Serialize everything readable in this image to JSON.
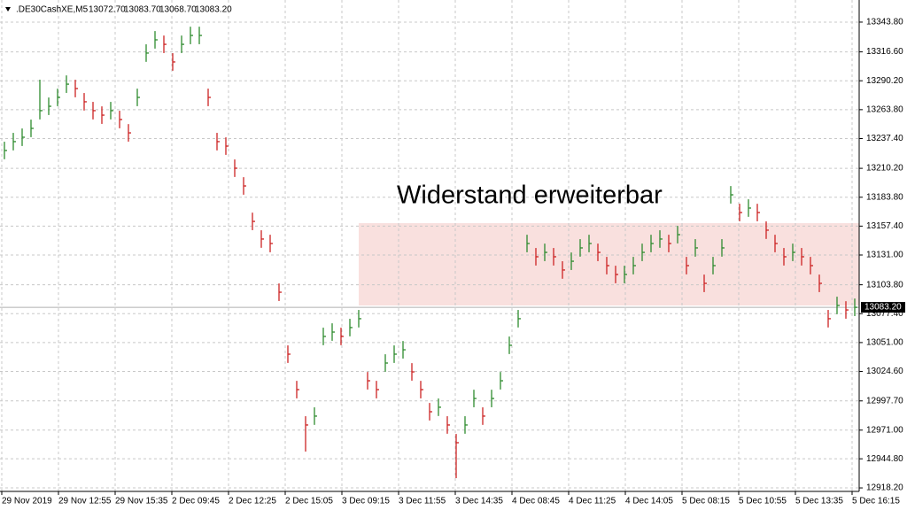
{
  "chart_data": {
    "type": "ohlc",
    "title": ".DE30CashXE,M5",
    "ohlc_header": [
      {
        "value": 13072.7,
        "label": "13072.70"
      },
      {
        "value": 13083.7,
        "label": "13083.70"
      },
      {
        "value": 13068.7,
        "label": "13068.70"
      },
      {
        "value": 13083.2,
        "label": "13083.20"
      }
    ],
    "annotation": "Widerstand erweiterbar",
    "up_color": "#2e8b2e",
    "down_color": "#cc2222",
    "zone_color": "#f9e0de",
    "annotation_color": "#4a90e2",
    "grid": true,
    "xlim": [
      -0.5,
      96.5
    ],
    "ylim": [
      12915.0,
      13364.0
    ],
    "yticks": [
      {
        "value": 12918.2,
        "label": "12918.20"
      },
      {
        "value": 12944.8,
        "label": "12944.80"
      },
      {
        "value": 12971.0,
        "label": "12971.00"
      },
      {
        "value": 12997.7,
        "label": "12997.70"
      },
      {
        "value": 13024.6,
        "label": "13024.60"
      },
      {
        "value": 13051.0,
        "label": "13051.00"
      },
      {
        "value": 13077.4,
        "label": "13077.40"
      },
      {
        "value": 13103.8,
        "label": "13103.80"
      },
      {
        "value": 13131.0,
        "label": "13131.00"
      },
      {
        "value": 13157.4,
        "label": "13157.40"
      },
      {
        "value": 13183.8,
        "label": "13183.80"
      },
      {
        "value": 13210.2,
        "label": "13210.20"
      },
      {
        "value": 13237.4,
        "label": "13237.40"
      },
      {
        "value": 13263.8,
        "label": "13263.80"
      },
      {
        "value": 13290.2,
        "label": "13290.20"
      },
      {
        "value": 13316.6,
        "label": "13316.60"
      },
      {
        "value": 13343.8,
        "label": "13343.80"
      }
    ],
    "xticks": [
      {
        "value": -0.3,
        "label": "29 Nov 2019"
      },
      {
        "value": 6.1,
        "label": "29 Nov 12:55"
      },
      {
        "value": 12.5,
        "label": "29 Nov 15:35"
      },
      {
        "value": 18.9,
        "label": "2 Dec 09:45"
      },
      {
        "value": 25.3,
        "label": "2 Dec 12:25"
      },
      {
        "value": 31.7,
        "label": "2 Dec 15:05"
      },
      {
        "value": 38.1,
        "label": "3 Dec 09:15"
      },
      {
        "value": 44.5,
        "label": "3 Dec 11:55"
      },
      {
        "value": 50.9,
        "label": "3 Dec 14:35"
      },
      {
        "value": 57.3,
        "label": "4 Dec 08:45"
      },
      {
        "value": 63.7,
        "label": "4 Dec 11:25"
      },
      {
        "value": 70.1,
        "label": "4 Dec 14:05"
      },
      {
        "value": 76.5,
        "label": "5 Dec 08:15"
      },
      {
        "value": 82.9,
        "label": "5 Dec 10:55"
      },
      {
        "value": 89.3,
        "label": "5 Dec 13:35"
      },
      {
        "value": 95.7,
        "label": "5 Dec 16:15"
      }
    ],
    "last_price": {
      "value": 13083.2,
      "label": "13083.20"
    },
    "zone": {
      "xlim": [
        40,
        96.5
      ],
      "ylim": [
        13084.9,
        13160.1
      ]
    },
    "high": [
      13234.5,
      13242.6,
      13246.6,
      13254.7,
      13291.2,
      13274.9,
      13283.0,
      13295.1,
      13291.1,
      13279.0,
      13270.9,
      13266.8,
      13270.9,
      13262.8,
      13250.6,
      13283.0,
      13323.5,
      13335.6,
      13331.5,
      13315.4,
      13331.5,
      13339.6,
      13339.6,
      13283.0,
      13242.6,
      13238.5,
      13218.3,
      13202.1,
      13169.7,
      13153.6,
      13149.5,
      13105.0,
      13048.4,
      13016.0,
      12983.7,
      12991.8,
      13064.6,
      13068.6,
      13064.6,
      13072.7,
      13080.8,
      13024.1,
      13016.0,
      13040.3,
      13048.4,
      13052.4,
      13032.2,
      13016.0,
      12995.8,
      12999.9,
      12983.7,
      12967.5,
      12983.7,
      13007.9,
      12991.8,
      13007.9,
      13024.1,
      13056.5,
      13080.8,
      13149.5,
      13137.4,
      13141.4,
      13137.4,
      13125.3,
      13133.3,
      13145.5,
      13149.5,
      13141.4,
      13129.3,
      13121.2,
      13121.2,
      13129.3,
      13141.4,
      13149.5,
      13153.6,
      13149.5,
      13157.6,
      13129.3,
      13145.5,
      13113.1,
      13129.3,
      13145.5,
      13194.0,
      13177.8,
      13181.9,
      13177.8,
      13161.7,
      13149.5,
      13137.4,
      13141.4,
      13137.4,
      13129.3,
      13113.1,
      13080.8,
      13092.9,
      13088.8,
      13091.2
    ],
    "low": [
      13218.5,
      13226.6,
      13230.6,
      13238.7,
      13254.9,
      13258.9,
      13267.0,
      13279.1,
      13275.1,
      13263.0,
      13254.9,
      13250.8,
      13254.9,
      13246.8,
      13234.6,
      13267.0,
      13307.5,
      13319.6,
      13315.5,
      13299.4,
      13315.5,
      13323.6,
      13323.6,
      13267.0,
      13226.6,
      13222.5,
      13202.3,
      13186.1,
      13153.7,
      13137.6,
      13133.5,
      13089.0,
      13032.4,
      13000.0,
      12951.4,
      12975.8,
      13048.6,
      13052.6,
      13048.6,
      13056.7,
      13064.8,
      13008.1,
      13000.0,
      13024.3,
      13032.4,
      13036.4,
      13016.2,
      13000.0,
      12979.8,
      12983.9,
      12967.7,
      12927.1,
      12967.7,
      12991.9,
      12975.8,
      12991.9,
      13008.1,
      13040.5,
      13064.8,
      13133.5,
      13121.4,
      13125.4,
      13121.4,
      13109.3,
      13117.3,
      13129.5,
      13133.5,
      13125.4,
      13113.3,
      13105.2,
      13105.2,
      13113.3,
      13125.4,
      13133.5,
      13137.6,
      13133.5,
      13141.6,
      13113.3,
      13129.5,
      13097.1,
      13113.3,
      13129.5,
      13178.0,
      13161.8,
      13165.9,
      13161.8,
      13145.7,
      13133.5,
      13121.4,
      13125.4,
      13121.4,
      13113.3,
      13097.1,
      13064.8,
      13076.9,
      13072.8,
      13075.2
    ],
    "close": [
      13226.5,
      13234.6,
      13238.6,
      13246.7,
      13262.9,
      13266.9,
      13275.0,
      13287.1,
      13283.1,
      13271.0,
      13262.9,
      13258.8,
      13262.9,
      13254.8,
      13242.6,
      13275.0,
      13315.5,
      13327.6,
      13323.5,
      13307.4,
      13323.5,
      13331.6,
      13331.6,
      13275.0,
      13234.6,
      13230.5,
      13210.3,
      13194.1,
      13161.7,
      13145.6,
      13141.5,
      13097.0,
      13040.4,
      13008.0,
      12975.7,
      12983.8,
      13056.6,
      13060.6,
      13056.6,
      13064.7,
      13072.8,
      13016.1,
      13008.0,
      13032.3,
      13040.4,
      13044.4,
      13024.2,
      13008.0,
      12987.8,
      12991.9,
      12975.7,
      12959.5,
      12975.7,
      12999.9,
      12983.8,
      12999.9,
      13016.1,
      13048.5,
      13072.8,
      13141.5,
      13129.4,
      13133.4,
      13129.4,
      13117.3,
      13125.3,
      13137.5,
      13141.5,
      13133.4,
      13121.3,
      13113.2,
      13113.2,
      13121.3,
      13133.4,
      13141.5,
      13145.6,
      13141.5,
      13149.6,
      13121.3,
      13137.5,
      13105.1,
      13121.3,
      13137.5,
      13186.0,
      13169.8,
      13173.9,
      13169.8,
      13153.7,
      13141.5,
      13129.4,
      13133.4,
      13129.4,
      13121.3,
      13105.1,
      13072.8,
      13084.9,
      13080.8,
      13083.2
    ]
  }
}
